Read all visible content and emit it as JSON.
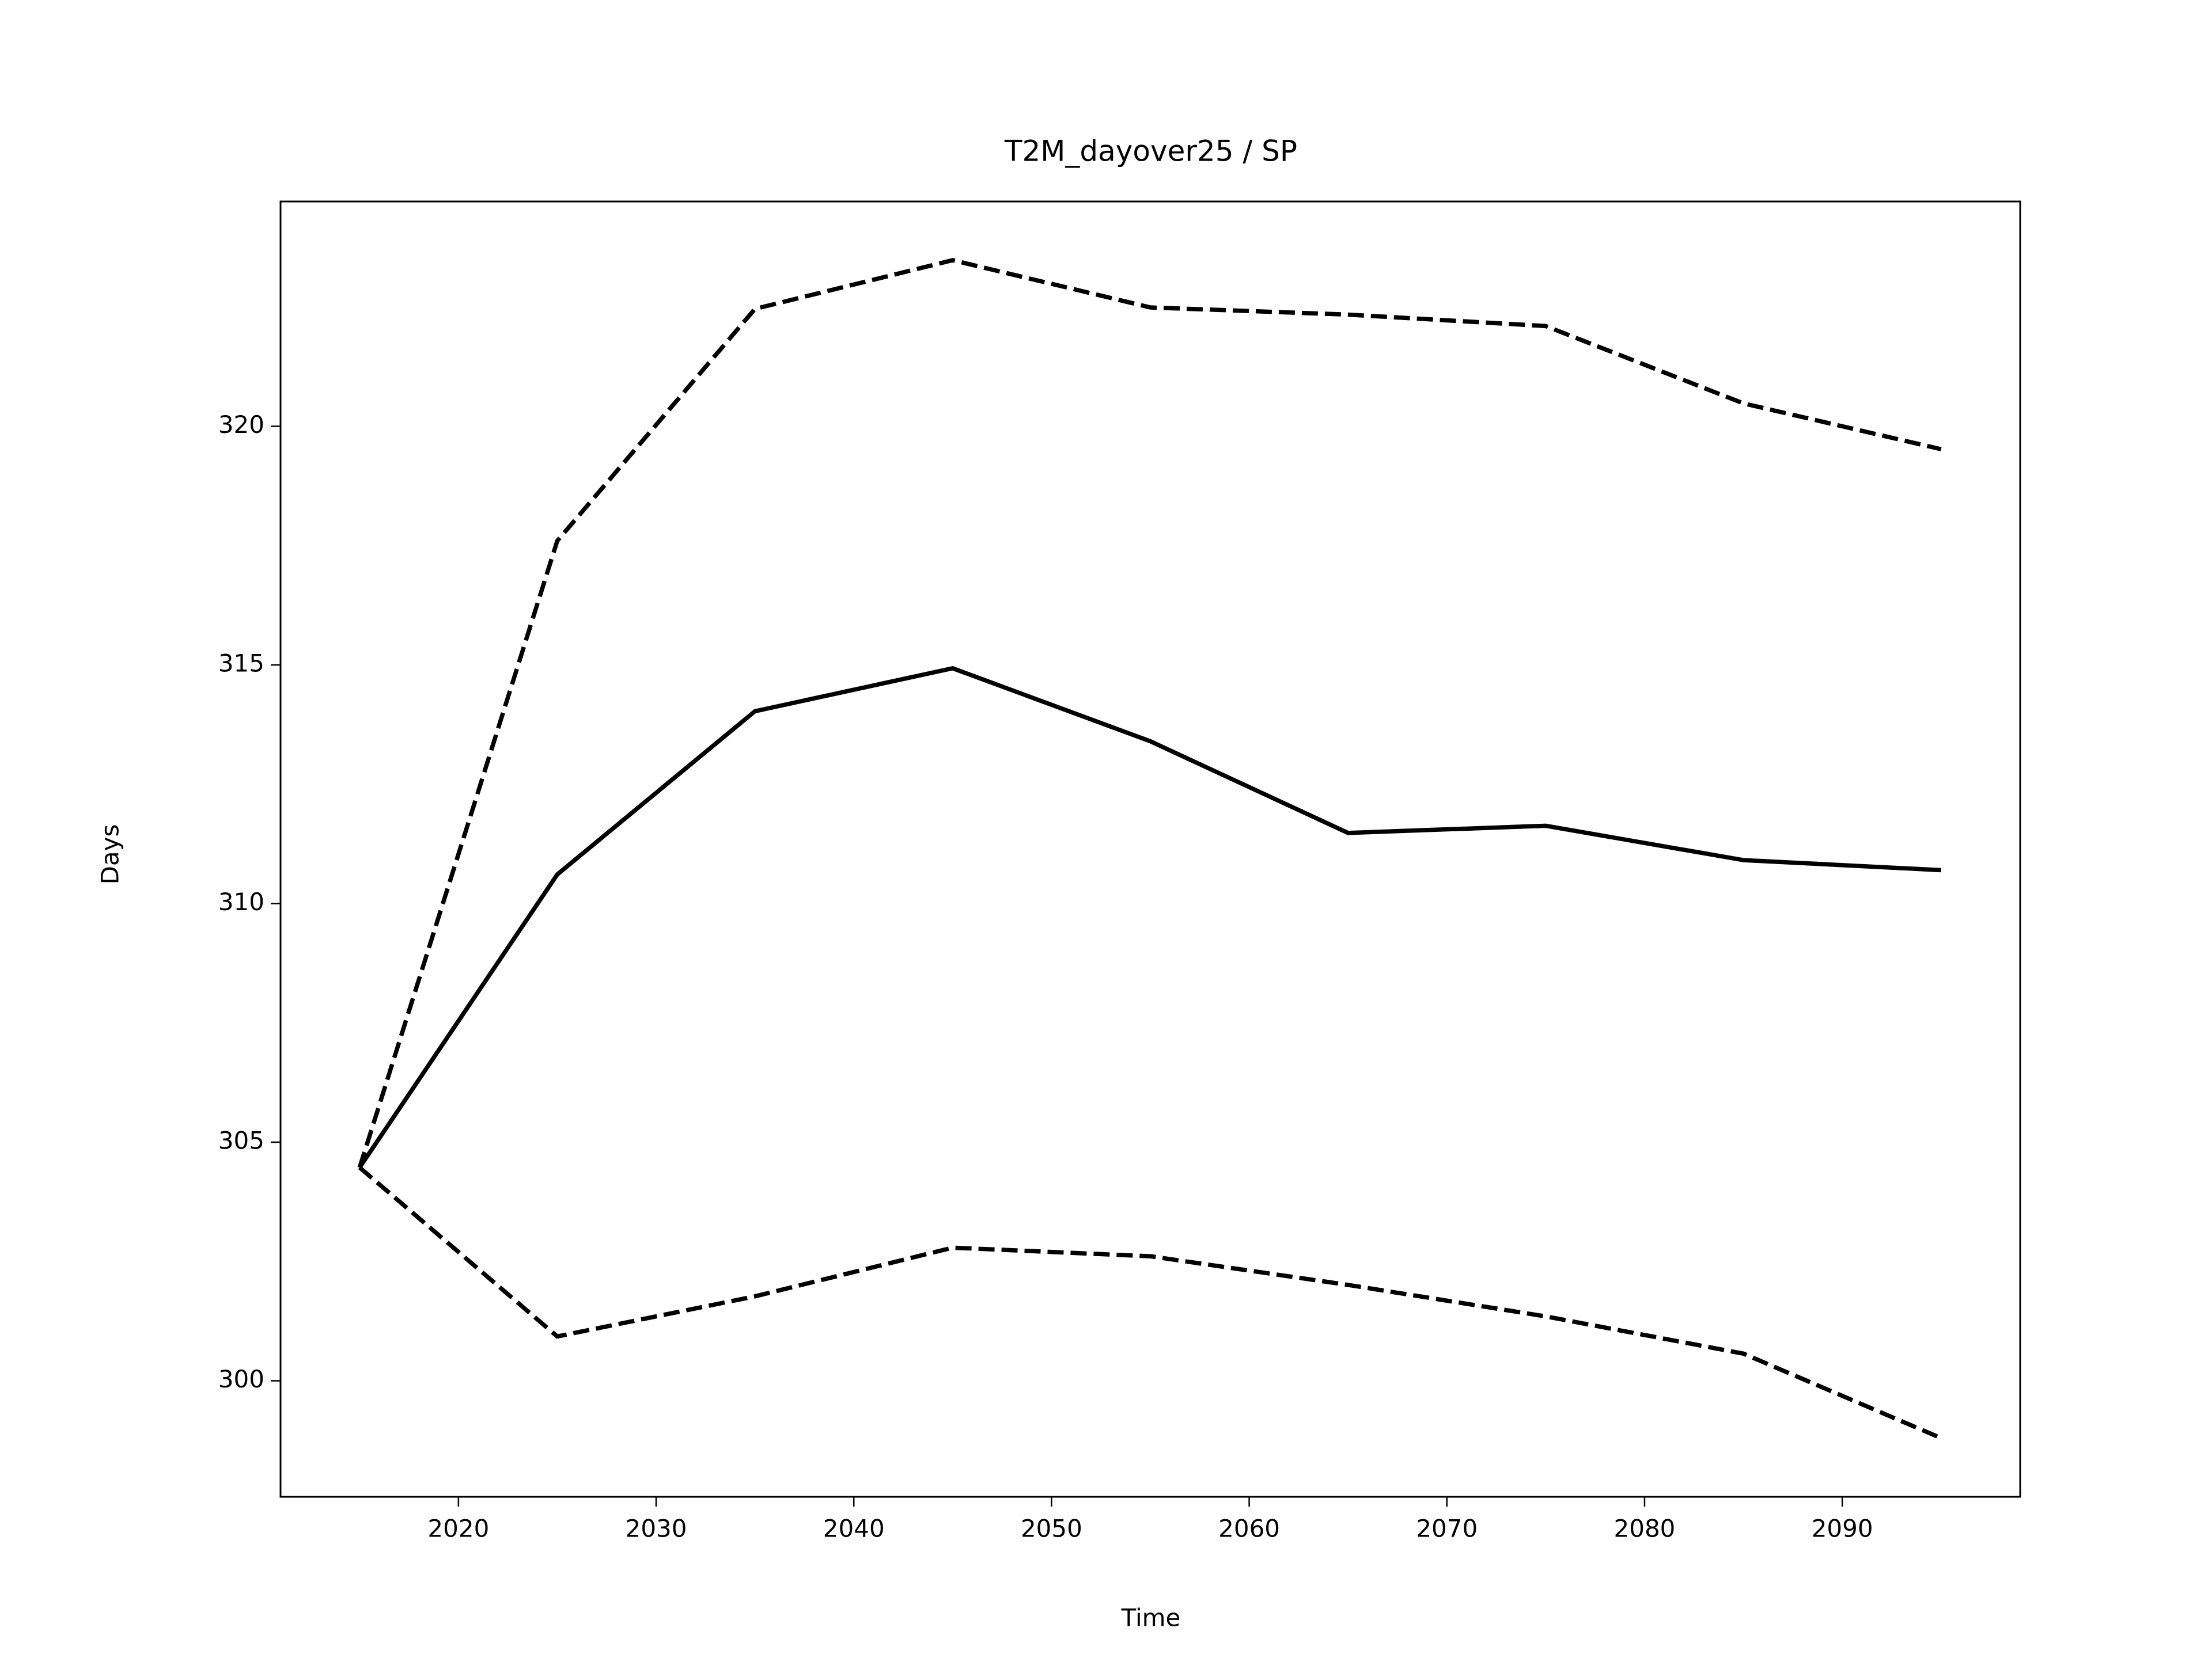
{
  "chart_data": {
    "type": "line",
    "title": "T2M_dayover25 / SP",
    "xlabel": "Time",
    "ylabel": "Days",
    "x": [
      2015,
      2025,
      2035,
      2045,
      2055,
      2065,
      2075,
      2085,
      2095
    ],
    "series": [
      {
        "color": "#000000",
        "linestyle": "solid",
        "values": [
          304.47,
          310.61,
          314.03,
          314.93,
          313.4,
          311.48,
          311.63,
          310.91,
          310.7
        ]
      },
      {
        "color": "#000000",
        "linestyle": "dashed",
        "values": [
          304.47,
          317.6,
          322.46,
          323.48,
          322.49,
          322.34,
          322.1,
          320.48,
          319.52
        ]
      },
      {
        "color": "#000000",
        "linestyle": "dashed",
        "values": [
          304.47,
          300.93,
          301.77,
          302.79,
          302.61,
          302.01,
          301.35,
          300.57,
          298.8
        ]
      }
    ],
    "xlim": [
      2011,
      2099
    ],
    "xticks": [
      2020,
      2030,
      2040,
      2050,
      2060,
      2070,
      2080,
      2090
    ],
    "ylim": [
      297.57,
      324.71
    ],
    "yticks": [
      300,
      305,
      310,
      315,
      320
    ],
    "grid": false
  }
}
